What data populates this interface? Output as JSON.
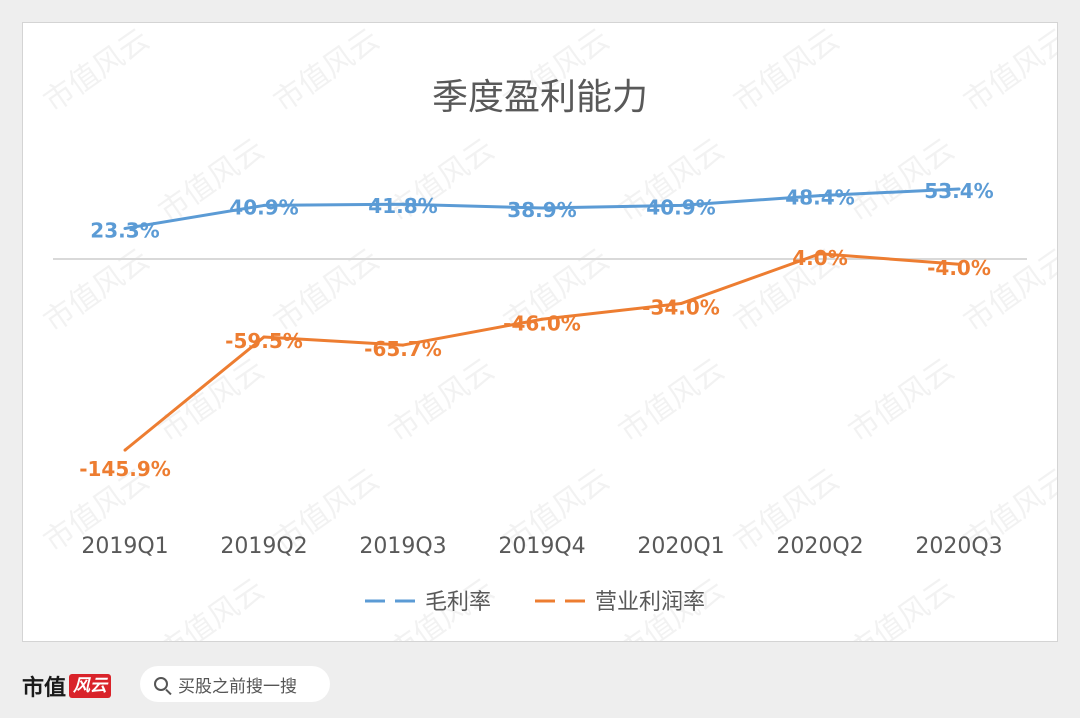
{
  "brand": {
    "name": "市值",
    "badge": "风云"
  },
  "search": {
    "placeholder": "买股之前搜一搜"
  },
  "watermark": "市值风云",
  "colors": {
    "series1": "#5b9bd5",
    "series2": "#ed7d31",
    "axis": "#d9d9d9",
    "title": "#595959",
    "tick": "#595959"
  },
  "chart_data": {
    "type": "line",
    "title": "季度盈利能力",
    "categories": [
      "2019Q1",
      "2019Q2",
      "2019Q3",
      "2019Q4",
      "2020Q1",
      "2020Q2",
      "2020Q3"
    ],
    "series": [
      {
        "name": "毛利率",
        "values": [
          23.3,
          40.9,
          41.8,
          38.9,
          40.9,
          48.4,
          53.4
        ],
        "labels": [
          "23.3%",
          "40.9%",
          "41.8%",
          "38.9%",
          "40.9%",
          "48.4%",
          "53.4%"
        ]
      },
      {
        "name": "营业利润率",
        "values": [
          -145.9,
          -59.5,
          -65.7,
          -46.0,
          -34.0,
          4.0,
          -4.0
        ],
        "labels": [
          "-145.9%",
          "-59.5%",
          "-65.7%",
          "-46.0%",
          "-34.0%",
          "4.0%",
          "-4.0%"
        ]
      }
    ],
    "legend": "bottom",
    "grid": false
  }
}
